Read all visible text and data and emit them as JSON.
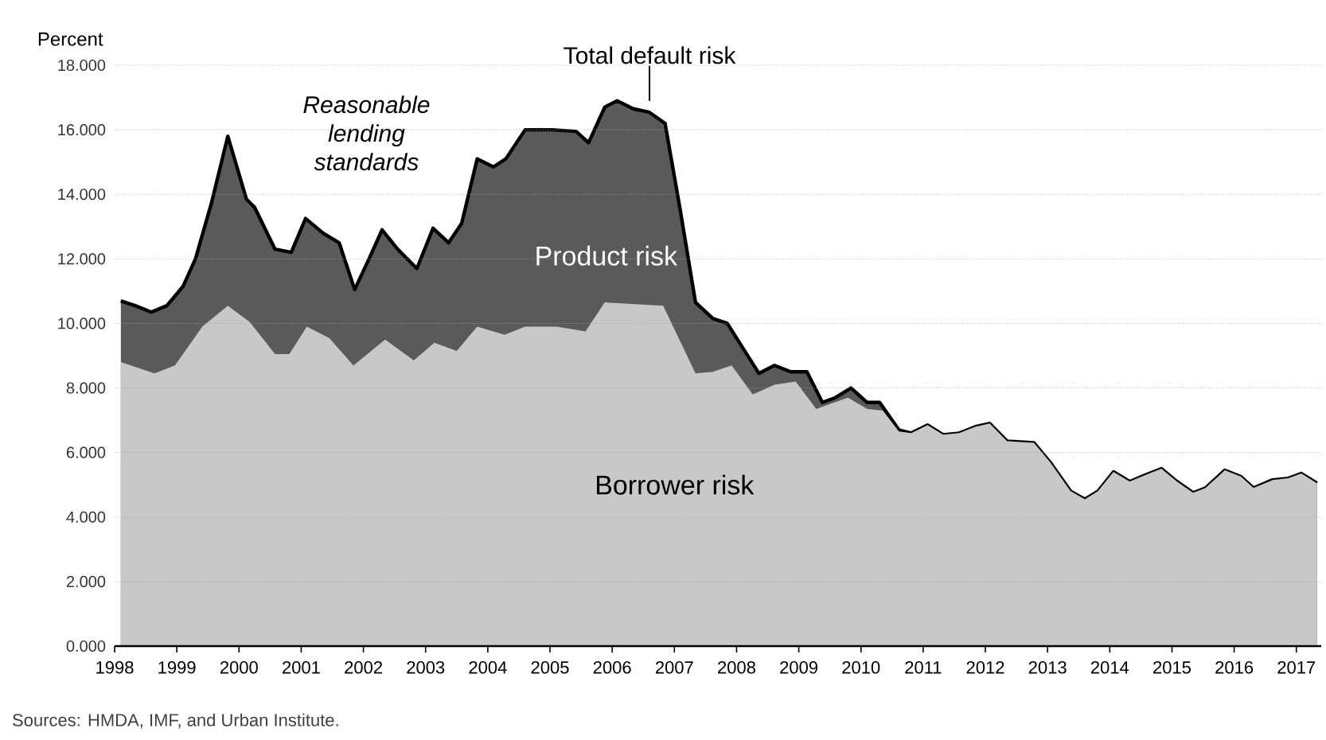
{
  "chart_data": {
    "type": "area",
    "ylabel": "Percent",
    "xlim": [
      1998,
      2017.4
    ],
    "ylim": [
      0,
      18
    ],
    "xticks": [
      1998,
      1999,
      2000,
      2001,
      2002,
      2003,
      2004,
      2005,
      2006,
      2007,
      2008,
      2009,
      2010,
      2011,
      2012,
      2013,
      2014,
      2015,
      2016,
      2017
    ],
    "yticks": [
      {
        "value": 0,
        "label": "0.000"
      },
      {
        "value": 2,
        "label": "2.000"
      },
      {
        "value": 4,
        "label": "4.000"
      },
      {
        "value": 6,
        "label": "6.000"
      },
      {
        "value": 8,
        "label": "8.000"
      },
      {
        "value": 10,
        "label": "10.000"
      },
      {
        "value": 12,
        "label": "12.000"
      },
      {
        "value": 14,
        "label": "14.000"
      },
      {
        "value": 16,
        "label": "16.000"
      },
      {
        "value": 18,
        "label": "18.000"
      }
    ],
    "grid": "y",
    "series": [
      {
        "name": "Total default risk",
        "color": "#5a5a5a",
        "line_style": "solid",
        "x": [
          1998.1,
          1998.33,
          1998.59,
          1998.84,
          1999.1,
          1999.3,
          1999.56,
          1999.82,
          2000.12,
          2000.25,
          2000.58,
          2000.84,
          2001.07,
          2001.35,
          2001.61,
          2001.86,
          2002.09,
          2002.3,
          2002.55,
          2002.86,
          2003.12,
          2003.37,
          2003.58,
          2003.83,
          2004.09,
          2004.29,
          2004.6,
          2005.03,
          2005.42,
          2005.62,
          2005.88,
          2006.08,
          2006.34,
          2006.59,
          2006.85,
          2007.1,
          2007.34,
          2007.62,
          2007.85,
          2008.36,
          2008.61,
          2008.87,
          2009.13,
          2009.38,
          2009.59,
          2009.84,
          2010.1,
          2010.3,
          2010.61,
          2010.81,
          2011.07,
          2011.32,
          2011.58,
          2011.84,
          2012.07,
          2012.35,
          2012.78,
          2013.04,
          2013.37,
          2013.6,
          2013.81,
          2014.06,
          2014.32,
          2014.57,
          2014.83,
          2015.08,
          2015.34,
          2015.54,
          2015.85,
          2016.11,
          2016.31,
          2016.62,
          2016.87,
          2017.08,
          2017.33
        ],
        "values": [
          10.7,
          10.55,
          10.35,
          10.55,
          11.15,
          12.0,
          13.75,
          15.8,
          13.85,
          13.6,
          12.3,
          12.2,
          13.25,
          12.8,
          12.5,
          11.05,
          12.0,
          12.9,
          12.3,
          11.7,
          12.95,
          12.5,
          13.1,
          15.1,
          14.85,
          15.1,
          16.0,
          16.0,
          15.95,
          15.6,
          16.7,
          16.9,
          16.65,
          16.55,
          16.2,
          13.45,
          10.65,
          10.15,
          10.0,
          8.45,
          8.7,
          8.5,
          8.5,
          7.55,
          7.7,
          8.0,
          7.55,
          7.55,
          6.7,
          6.6,
          6.85,
          6.55,
          6.6,
          6.8,
          6.9,
          6.35,
          6.3,
          5.7,
          4.8,
          4.55,
          4.8,
          5.4,
          5.1,
          5.3,
          5.5,
          5.1,
          4.75,
          4.9,
          5.45,
          5.25,
          4.9,
          5.15,
          5.2,
          5.35,
          5.05
        ]
      },
      {
        "name": "Borrower risk",
        "color": "#c8c8c8",
        "x": [
          1998.1,
          1998.64,
          1998.97,
          1999.41,
          1999.82,
          2000.17,
          2000.58,
          2000.81,
          2001.09,
          2001.45,
          2001.84,
          2002.35,
          2002.81,
          2003.14,
          2003.5,
          2003.83,
          2004.27,
          2004.6,
          2005.11,
          2005.57,
          2005.88,
          2006.82,
          2007.34,
          2007.62,
          2007.92,
          2008.26,
          2008.61,
          2008.95,
          2009.28,
          2009.79,
          2010.1,
          2010.35,
          2010.61,
          2010.81,
          2011.07,
          2011.32,
          2011.58,
          2011.84,
          2012.07,
          2012.35,
          2012.78,
          2013.04,
          2013.37,
          2013.6,
          2013.81,
          2014.06,
          2014.32,
          2014.57,
          2014.83,
          2015.08,
          2015.34,
          2015.54,
          2015.85,
          2016.11,
          2016.31,
          2016.62,
          2016.87,
          2017.08,
          2017.33
        ],
        "values": [
          8.8,
          8.45,
          8.7,
          9.9,
          10.55,
          10.05,
          9.05,
          9.05,
          9.9,
          9.55,
          8.7,
          9.5,
          8.85,
          9.4,
          9.15,
          9.9,
          9.65,
          9.9,
          9.9,
          9.75,
          10.65,
          10.55,
          8.45,
          8.5,
          8.7,
          7.8,
          8.1,
          8.2,
          7.35,
          7.7,
          7.35,
          7.3,
          6.65,
          6.6,
          6.85,
          6.55,
          6.6,
          6.8,
          6.9,
          6.35,
          6.3,
          5.7,
          4.8,
          4.55,
          4.8,
          5.4,
          5.1,
          5.3,
          5.5,
          5.1,
          4.75,
          4.9,
          5.45,
          5.25,
          4.9,
          5.15,
          5.2,
          5.35,
          5.05
        ]
      }
    ],
    "annotations": [
      "Reasonable lending standards",
      "Product risk",
      "Sources: HMDA, IMF, and Urban Institute."
    ]
  }
}
